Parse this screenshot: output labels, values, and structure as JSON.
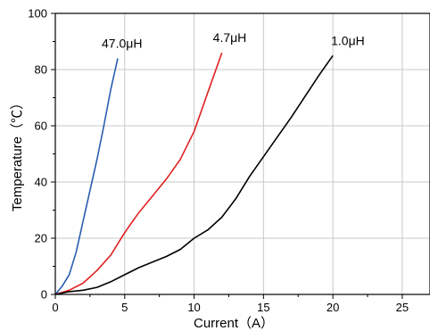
{
  "chart_data": {
    "type": "line",
    "title": "",
    "xlabel": "Current（A）",
    "ylabel": "Temperature（℃）",
    "xlim": [
      0,
      27
    ],
    "ylim": [
      0,
      100
    ],
    "x_ticks": [
      0,
      5,
      10,
      15,
      20,
      25
    ],
    "y_ticks": [
      0,
      20,
      40,
      60,
      80,
      100
    ],
    "grid": true,
    "legend": "labels next to each curve",
    "series": [
      {
        "name": "47.0μH",
        "color": "#2a5db0",
        "x": [
          0,
          0.5,
          1,
          1.5,
          2,
          2.5,
          3,
          3.5,
          4,
          4.5
        ],
        "y": [
          0,
          3,
          7,
          15,
          26,
          37,
          48,
          60,
          73,
          84
        ]
      },
      {
        "name": "4.7μH",
        "color": "#e02020",
        "x": [
          0,
          1,
          2,
          3,
          4,
          5,
          6,
          7,
          8,
          9,
          10,
          11,
          12
        ],
        "y": [
          0,
          1.5,
          4,
          8.5,
          14,
          22,
          29,
          35,
          41,
          48,
          58,
          72,
          86
        ]
      },
      {
        "name": "1.0μH",
        "color": "#000000",
        "x": [
          0,
          1,
          2,
          3,
          4,
          5,
          6,
          7,
          8,
          9,
          10,
          11,
          12,
          13,
          14,
          15,
          16,
          17,
          18,
          19,
          20
        ],
        "y": [
          0,
          1,
          1.5,
          2.5,
          4.5,
          7,
          9.5,
          11.5,
          13.5,
          16,
          20,
          23,
          27.5,
          34,
          42,
          49,
          56,
          63,
          70.5,
          78,
          85
        ]
      }
    ]
  }
}
